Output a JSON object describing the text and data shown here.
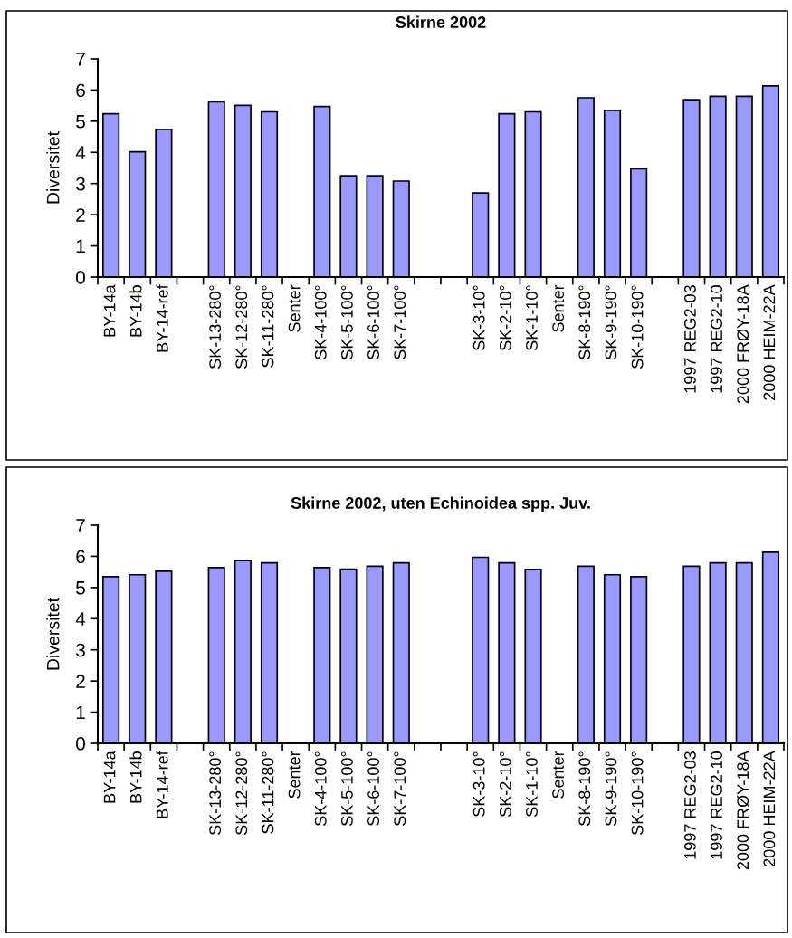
{
  "chart_data": [
    {
      "type": "bar",
      "title": "Skirne 2002",
      "ylabel": "Diversitet",
      "categories": [
        "BY-14a",
        "BY-14b",
        "BY-14-ref",
        null,
        "SK-13-280°",
        "SK-12-280°",
        "SK-11-280°",
        "Senter",
        "SK-4-100°",
        "SK-5-100°",
        "SK-6-100°",
        "SK-7-100°",
        null,
        null,
        "SK-3-10°",
        "SK-2-10°",
        "SK-1-10°",
        "Senter",
        "SK-8-190°",
        "SK-9-190°",
        "SK-10-190°",
        null,
        "1997 REG2-03",
        "1997 REG2-10",
        "2000 FRØY-18A",
        "2000 HEIM-22A"
      ],
      "values": [
        5.24,
        4.02,
        4.74,
        null,
        5.62,
        5.51,
        5.3,
        null,
        5.47,
        3.25,
        3.25,
        3.08,
        null,
        null,
        2.7,
        5.24,
        5.3,
        null,
        5.75,
        5.35,
        3.47,
        null,
        5.69,
        5.8,
        5.8,
        6.13
      ],
      "color": "#9999ff",
      "ylim": [
        0,
        7
      ],
      "yticks": [
        0,
        1,
        2,
        3,
        4,
        5,
        6,
        7
      ],
      "grid": false
    },
    {
      "type": "bar",
      "title": "Skirne 2002, uten Echinoidea spp. Juv.",
      "ylabel": "Diversitet",
      "categories": [
        "BY-14a",
        "BY-14b",
        "BY-14-ref",
        null,
        "SK-13-280°",
        "SK-12-280°",
        "SK-11-280°",
        "Senter",
        "SK-4-100°",
        "SK-5-100°",
        "SK-6-100°",
        "SK-7-100°",
        null,
        null,
        "SK-3-10°",
        "SK-2-10°",
        "SK-1-10°",
        "Senter",
        "SK-8-190°",
        "SK-9-190°",
        "SK-10-190°",
        null,
        "1997 REG2-03",
        "1997 REG2-10",
        "2000 FRØY-18A",
        "2000 HEIM-22A"
      ],
      "values": [
        5.35,
        5.41,
        5.52,
        null,
        5.64,
        5.86,
        5.79,
        null,
        5.64,
        5.59,
        5.68,
        5.79,
        null,
        null,
        5.97,
        5.79,
        5.58,
        null,
        5.68,
        5.41,
        5.35,
        null,
        5.68,
        5.79,
        5.79,
        6.13
      ],
      "color": "#9999ff",
      "ylim": [
        0,
        7
      ],
      "yticks": [
        0,
        1,
        2,
        3,
        4,
        5,
        6,
        7
      ],
      "grid": false
    }
  ]
}
